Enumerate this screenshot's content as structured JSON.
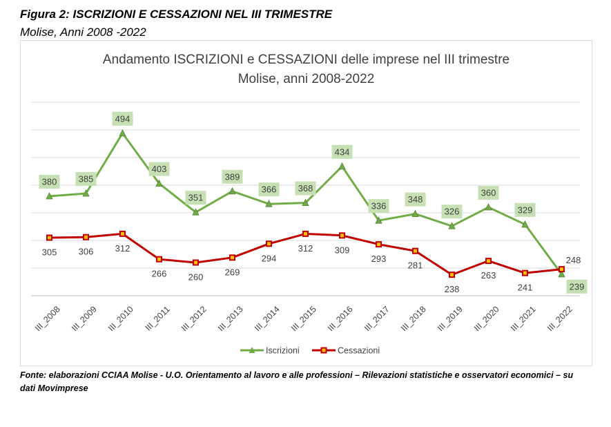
{
  "figure": {
    "title": "Figura 2: ISCRIZIONI E CESSAZIONI NEL III TRIMESTRE",
    "subtitle": "Molise, Anni 2008 -2022",
    "source": "Fonte: elaborazioni CCIAA Molise - U.O. Orientamento al lavoro e alle professioni – Rilevazioni statistiche e osservatori economici – su dati Movimprese"
  },
  "chart_data": {
    "type": "line",
    "title_line1": "Andamento ISCRIZIONI e CESSAZIONI delle imprese nel III trimestre",
    "title_line2": "Molise, anni 2008-2022",
    "categories": [
      "III_2008",
      "III_2009",
      "III_2010",
      "III_2011",
      "III_2012",
      "III_2013",
      "III_2014",
      "III_2015",
      "III_2016",
      "III_2017",
      "III_2018",
      "III_2019",
      "III_2020",
      "III_2021",
      "III_2022"
    ],
    "series": [
      {
        "name": "Iscrizioni",
        "color": "#70ad47",
        "label_bg": "#c6e0b4",
        "marker": "triangle",
        "values": [
          380,
          385,
          494,
          403,
          351,
          389,
          366,
          368,
          434,
          336,
          348,
          326,
          360,
          329,
          239
        ]
      },
      {
        "name": "Cessazioni",
        "color": "#c00000",
        "marker": "square",
        "values": [
          305,
          306,
          312,
          266,
          260,
          269,
          294,
          312,
          309,
          293,
          281,
          238,
          263,
          241,
          248
        ]
      }
    ],
    "ylim": [
      200,
      550
    ],
    "grid": true,
    "legend": "bottom",
    "xlabel": "",
    "ylabel": ""
  }
}
